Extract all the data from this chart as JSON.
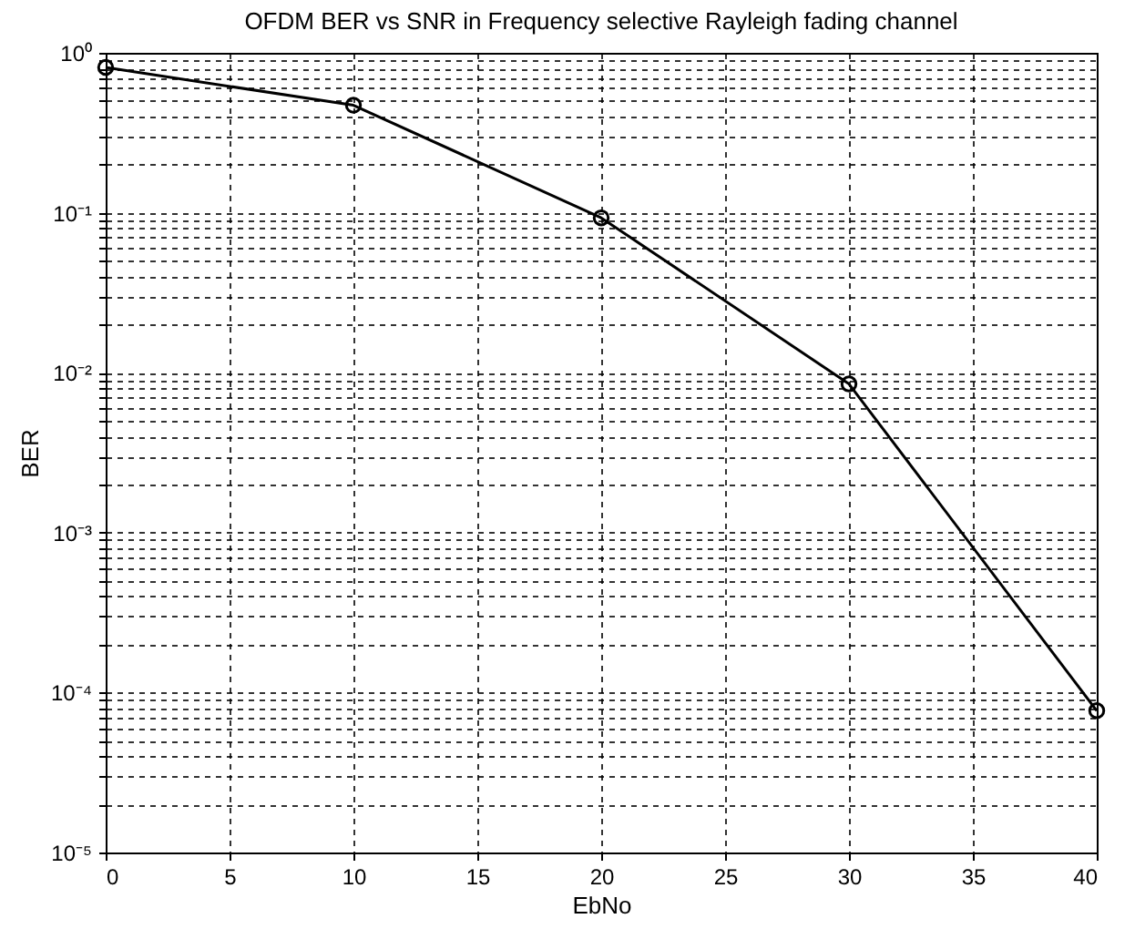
{
  "chart_data": {
    "type": "line",
    "title": "OFDM BER vs SNR in Frequency selective Rayleigh fading channel",
    "xlabel": "EbNo",
    "ylabel": "BER",
    "x": [
      0,
      10,
      20,
      30,
      40
    ],
    "series": [
      {
        "color": "#000000",
        "values": [
          0.81,
          0.47,
          0.093,
          0.0085,
          7.7e-05
        ]
      }
    ],
    "xlim": [
      0,
      40
    ],
    "xticks": [
      0,
      5,
      10,
      15,
      20,
      25,
      30,
      35,
      40
    ],
    "ylim": [
      1e-05,
      1
    ],
    "log": "y",
    "yticks": [
      {
        "value": 1e-05,
        "label": "10⁻⁵"
      },
      {
        "value": 2e-05,
        "label": null
      },
      {
        "value": 3e-05,
        "label": null
      },
      {
        "value": 4e-05,
        "label": null
      },
      {
        "value": 5e-05,
        "label": null
      },
      {
        "value": 6e-05,
        "label": null
      },
      {
        "value": 7e-05,
        "label": null
      },
      {
        "value": 8e-05,
        "label": null
      },
      {
        "value": 9e-05,
        "label": null
      },
      {
        "value": 0.0001,
        "label": "10⁻⁴"
      },
      {
        "value": 0.0002,
        "label": null
      },
      {
        "value": 0.0003,
        "label": null
      },
      {
        "value": 0.0004,
        "label": null
      },
      {
        "value": 0.0005,
        "label": null
      },
      {
        "value": 0.0006,
        "label": null
      },
      {
        "value": 0.0007,
        "label": null
      },
      {
        "value": 0.0008,
        "label": null
      },
      {
        "value": 0.0009,
        "label": null
      },
      {
        "value": 0.001,
        "label": "10⁻³"
      },
      {
        "value": 0.002,
        "label": null
      },
      {
        "value": 0.003,
        "label": null
      },
      {
        "value": 0.004,
        "label": null
      },
      {
        "value": 0.005,
        "label": null
      },
      {
        "value": 0.006,
        "label": null
      },
      {
        "value": 0.007,
        "label": null
      },
      {
        "value": 0.008,
        "label": null
      },
      {
        "value": 0.009,
        "label": null
      },
      {
        "value": 0.01,
        "label": "10⁻²"
      },
      {
        "value": 0.02,
        "label": null
      },
      {
        "value": 0.03,
        "label": null
      },
      {
        "value": 0.04,
        "label": null
      },
      {
        "value": 0.05,
        "label": null
      },
      {
        "value": 0.06,
        "label": null
      },
      {
        "value": 0.07,
        "label": null
      },
      {
        "value": 0.08,
        "label": null
      },
      {
        "value": 0.09,
        "label": null
      },
      {
        "value": 0.1,
        "label": "10⁻¹"
      },
      {
        "value": 0.2,
        "label": null
      },
      {
        "value": 0.3,
        "label": null
      },
      {
        "value": 0.4,
        "label": null
      },
      {
        "value": 0.5,
        "label": null
      },
      {
        "value": 0.6,
        "label": null
      },
      {
        "value": 0.7,
        "label": null
      },
      {
        "value": 0.8,
        "label": null
      },
      {
        "value": 0.9,
        "label": null
      },
      {
        "value": 1,
        "label": "10⁰"
      }
    ],
    "grid": true,
    "marker": "circle",
    "line_style": "solid"
  }
}
